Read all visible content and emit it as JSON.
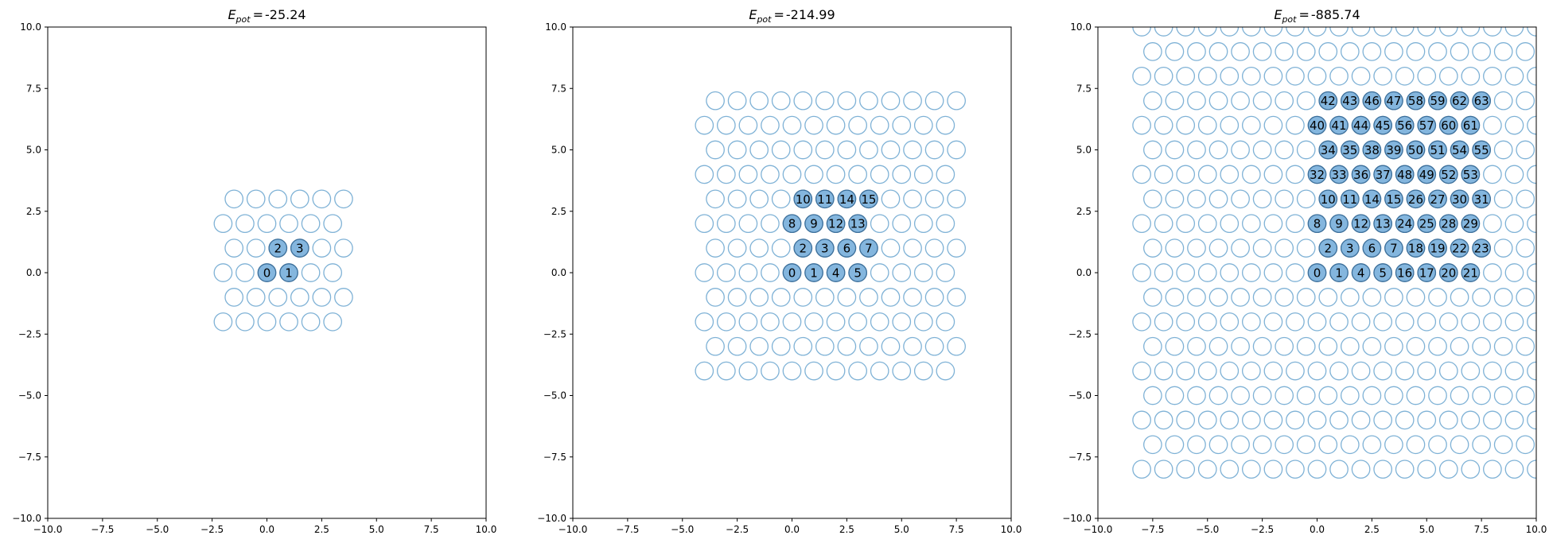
{
  "chart_data": [
    {
      "type": "scatter",
      "title": "-25.24",
      "title_prefix": "E",
      "title_subscript": "pot",
      "xlim": [
        -10,
        10
      ],
      "ylim": [
        -10,
        10
      ],
      "ticks": [
        -10,
        -7.5,
        -5,
        -2.5,
        0,
        2.5,
        5,
        7.5,
        10
      ],
      "tick_labels": [
        "−10.0",
        "−7.5",
        "−5.0",
        "−2.5",
        "0.0",
        "2.5",
        "5.0",
        "7.5",
        "10.0"
      ],
      "lattice": {
        "x_min": -2,
        "x_max": 3.5,
        "y_min": -2,
        "y_max": 3
      },
      "occupied": [
        [
          0,
          0
        ],
        [
          1,
          0
        ],
        [
          0.5,
          1
        ],
        [
          1.5,
          1
        ]
      ]
    },
    {
      "type": "scatter",
      "title": "-214.99",
      "title_prefix": "E",
      "title_subscript": "pot",
      "xlim": [
        -10,
        10
      ],
      "ylim": [
        -10,
        10
      ],
      "ticks": [
        -10,
        -7.5,
        -5,
        -2.5,
        0,
        2.5,
        5,
        7.5,
        10
      ],
      "tick_labels": [
        "−10.0",
        "−7.5",
        "−5.0",
        "−2.5",
        "0.0",
        "2.5",
        "5.0",
        "7.5",
        "10.0"
      ],
      "lattice": {
        "x_min": -4,
        "x_max": 7.5,
        "y_min": -4,
        "y_max": 7
      },
      "occupied": [
        [
          0,
          0
        ],
        [
          1,
          0
        ],
        [
          0.5,
          1
        ],
        [
          1.5,
          1
        ],
        [
          2,
          0
        ],
        [
          3,
          0
        ],
        [
          2.5,
          1
        ],
        [
          3.5,
          1
        ],
        [
          0,
          2
        ],
        [
          1,
          2
        ],
        [
          0.5,
          3
        ],
        [
          1.5,
          3
        ],
        [
          2,
          2
        ],
        [
          3,
          2
        ],
        [
          2.5,
          3
        ],
        [
          3.5,
          3
        ]
      ]
    },
    {
      "type": "scatter",
      "title": "-885.74",
      "title_prefix": "E",
      "title_subscript": "pot",
      "xlim": [
        -10,
        10
      ],
      "ylim": [
        -10,
        10
      ],
      "ticks": [
        -10,
        -7.5,
        -5,
        -2.5,
        0,
        2.5,
        5,
        7.5,
        10
      ],
      "tick_labels": [
        "−10.0",
        "−7.5",
        "−5.0",
        "−2.5",
        "0.0",
        "2.5",
        "5.0",
        "7.5",
        "10.0"
      ],
      "lattice": {
        "x_min": -8,
        "x_max": 10,
        "y_min": -8,
        "y_max": 10
      },
      "occupied": [
        [
          0,
          0
        ],
        [
          1,
          0
        ],
        [
          0.5,
          1
        ],
        [
          1.5,
          1
        ],
        [
          2,
          0
        ],
        [
          3,
          0
        ],
        [
          2.5,
          1
        ],
        [
          3.5,
          1
        ],
        [
          0,
          2
        ],
        [
          1,
          2
        ],
        [
          0.5,
          3
        ],
        [
          1.5,
          3
        ],
        [
          2,
          2
        ],
        [
          3,
          2
        ],
        [
          2.5,
          3
        ],
        [
          3.5,
          3
        ],
        [
          4,
          0
        ],
        [
          5,
          0
        ],
        [
          4.5,
          1
        ],
        [
          5.5,
          1
        ],
        [
          6,
          0
        ],
        [
          7,
          0
        ],
        [
          6.5,
          1
        ],
        [
          7.5,
          1
        ],
        [
          4,
          2
        ],
        [
          5,
          2
        ],
        [
          4.5,
          3
        ],
        [
          5.5,
          3
        ],
        [
          6,
          2
        ],
        [
          7,
          2
        ],
        [
          6.5,
          3
        ],
        [
          7.5,
          3
        ],
        [
          0,
          4
        ],
        [
          1,
          4
        ],
        [
          0.5,
          5
        ],
        [
          1.5,
          5
        ],
        [
          2,
          4
        ],
        [
          3,
          4
        ],
        [
          2.5,
          5
        ],
        [
          3.5,
          5
        ],
        [
          0,
          6
        ],
        [
          1,
          6
        ],
        [
          0.5,
          7
        ],
        [
          1.5,
          7
        ],
        [
          2,
          6
        ],
        [
          3,
          6
        ],
        [
          2.5,
          7
        ],
        [
          3.5,
          7
        ],
        [
          4,
          4
        ],
        [
          5,
          4
        ],
        [
          4.5,
          5
        ],
        [
          5.5,
          5
        ],
        [
          6,
          4
        ],
        [
          7,
          4
        ],
        [
          6.5,
          5
        ],
        [
          7.5,
          5
        ],
        [
          4,
          6
        ],
        [
          5,
          6
        ],
        [
          4.5,
          7
        ],
        [
          5.5,
          7
        ],
        [
          6,
          6
        ],
        [
          7,
          6
        ],
        [
          6.5,
          7
        ],
        [
          7.5,
          7
        ]
      ]
    }
  ],
  "colors": {
    "empty_site_stroke": "#7fb2d6",
    "occupied_fill": "#84b6de",
    "occupied_stroke": "#3d6f9a"
  }
}
